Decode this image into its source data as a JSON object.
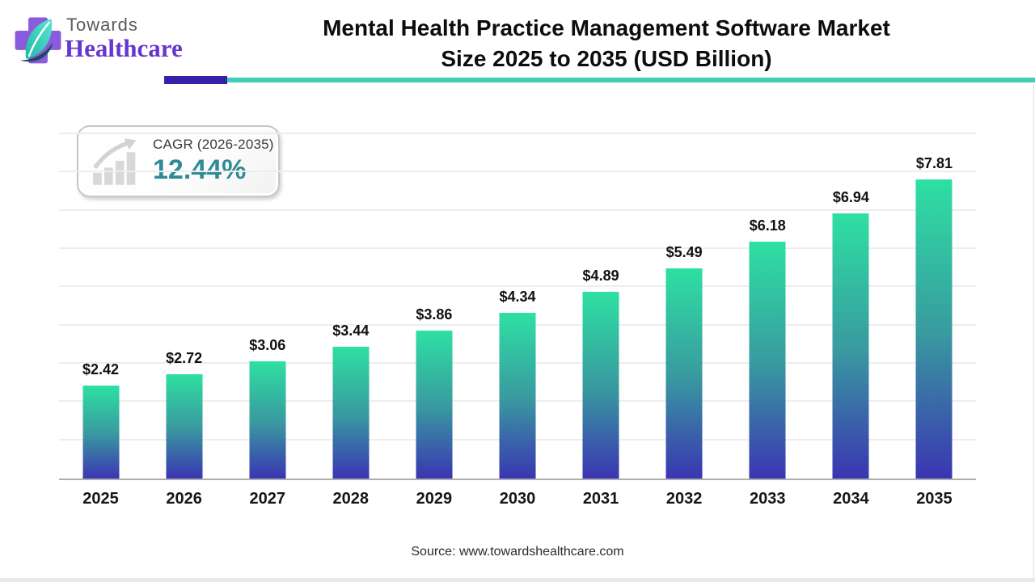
{
  "logo": {
    "brand_top": "Towards",
    "brand_bottom": "Healthcare"
  },
  "header": {
    "title_line1": "Mental Health Practice Management Software Market",
    "title_line2": "Size 2025 to 2035 (USD Billion)",
    "accent_purple": "#3A1FAD",
    "accent_teal": "#3ECFB2"
  },
  "cagr_badge": {
    "label": "CAGR (2026-2035)",
    "value": "12.44%",
    "value_color": "#2E8B96",
    "icon": "growth-bar-chart-icon"
  },
  "chart_data": {
    "type": "bar",
    "title": "Mental Health Practice Management Software Market Size 2025 to 2035 (USD Billion)",
    "categories": [
      "2025",
      "2026",
      "2027",
      "2028",
      "2029",
      "2030",
      "2031",
      "2032",
      "2033",
      "2034",
      "2035"
    ],
    "values": [
      2.42,
      2.72,
      3.06,
      3.44,
      3.86,
      4.34,
      4.89,
      5.49,
      6.18,
      6.94,
      7.81
    ],
    "value_labels": [
      "$2.42",
      "$2.72",
      "$3.06",
      "$3.44",
      "$3.86",
      "$4.34",
      "$4.89",
      "$5.49",
      "$6.18",
      "$6.94",
      "$7.81"
    ],
    "xlabel": "",
    "ylabel": "",
    "unit": "USD Billion",
    "ylim": [
      0,
      9
    ],
    "gridline_step": 1,
    "grid": "horizontal",
    "legend": "none",
    "bar_gradient_top": "#2EE0A2",
    "bar_gradient_mid": "#3999A0",
    "bar_gradient_bottom": "#3A35B2"
  },
  "footer": {
    "source": "Source: www.towardshealthcare.com"
  }
}
